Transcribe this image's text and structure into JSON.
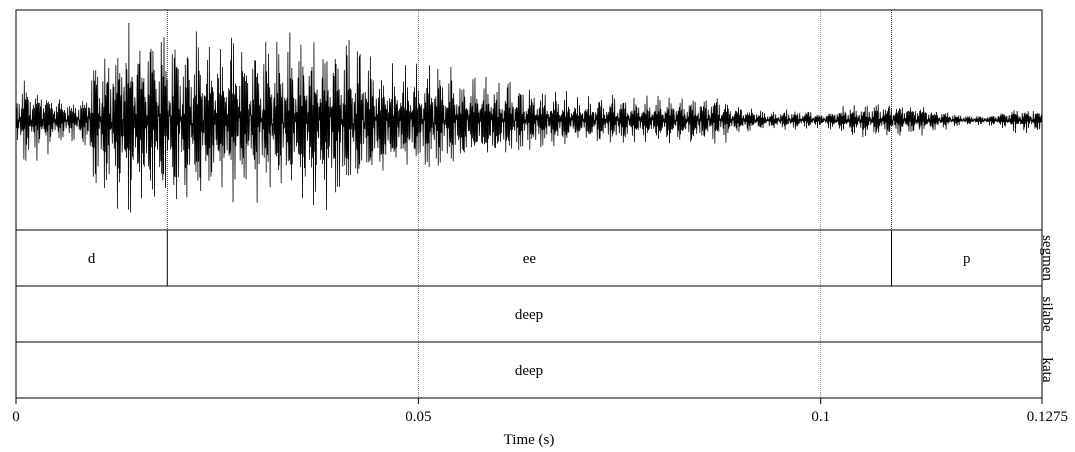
{
  "chart_data": {
    "type": "waveform-textgrid",
    "xlabel": "Time (s)",
    "xlim": [
      0,
      0.1275
    ],
    "ticks": [
      {
        "value": 0,
        "label": "0"
      },
      {
        "value": 0.05,
        "label": "0.05"
      },
      {
        "value": 0.1,
        "label": "0.1"
      },
      {
        "value": 0.1275,
        "label": "0.1275"
      }
    ],
    "gridlines": [
      0.05,
      0.1
    ],
    "boundaries": [
      0.0188,
      0.1088
    ],
    "waveform": {
      "envelope": [
        [
          0,
          0.32
        ],
        [
          0.001,
          0.44
        ],
        [
          0.002,
          0.4
        ],
        [
          0.0035,
          0.36
        ],
        [
          0.005,
          0.28
        ],
        [
          0.007,
          0.2
        ],
        [
          0.0085,
          0.26
        ],
        [
          0.0095,
          0.7
        ],
        [
          0.0115,
          0.82
        ],
        [
          0.0135,
          0.97
        ],
        [
          0.0165,
          0.98
        ],
        [
          0.0195,
          0.92
        ],
        [
          0.023,
          0.88
        ],
        [
          0.027,
          0.82
        ],
        [
          0.031,
          0.8
        ],
        [
          0.0355,
          0.84
        ],
        [
          0.04,
          0.94
        ],
        [
          0.0445,
          0.66
        ],
        [
          0.048,
          0.5
        ],
        [
          0.0515,
          0.62
        ],
        [
          0.0545,
          0.5
        ],
        [
          0.058,
          0.44
        ],
        [
          0.0615,
          0.4
        ],
        [
          0.066,
          0.3
        ],
        [
          0.07,
          0.24
        ],
        [
          0.0745,
          0.28
        ],
        [
          0.078,
          0.22
        ],
        [
          0.0825,
          0.26
        ],
        [
          0.0865,
          0.26
        ],
        [
          0.09,
          0.16
        ],
        [
          0.094,
          0.09
        ],
        [
          0.097,
          0.12
        ],
        [
          0.1005,
          0.08
        ],
        [
          0.1035,
          0.16
        ],
        [
          0.1075,
          0.2
        ],
        [
          0.1115,
          0.18
        ],
        [
          0.115,
          0.1
        ],
        [
          0.118,
          0.05
        ],
        [
          0.121,
          0.06
        ],
        [
          0.1245,
          0.14
        ],
        [
          0.1275,
          0.12
        ]
      ],
      "periods_per_second": 1000
    },
    "tiers": [
      {
        "name": "segmen",
        "intervals": [
          {
            "start": 0,
            "end": 0.0188,
            "label": "d"
          },
          {
            "start": 0.0188,
            "end": 0.1088,
            "label": "ee"
          },
          {
            "start": 0.1088,
            "end": 0.1275,
            "label": "p"
          }
        ]
      },
      {
        "name": "silabe",
        "intervals": [
          {
            "start": 0,
            "end": 0.1275,
            "label": "deep"
          }
        ]
      },
      {
        "name": "kata",
        "intervals": [
          {
            "start": 0,
            "end": 0.1275,
            "label": "deep"
          }
        ]
      }
    ]
  }
}
